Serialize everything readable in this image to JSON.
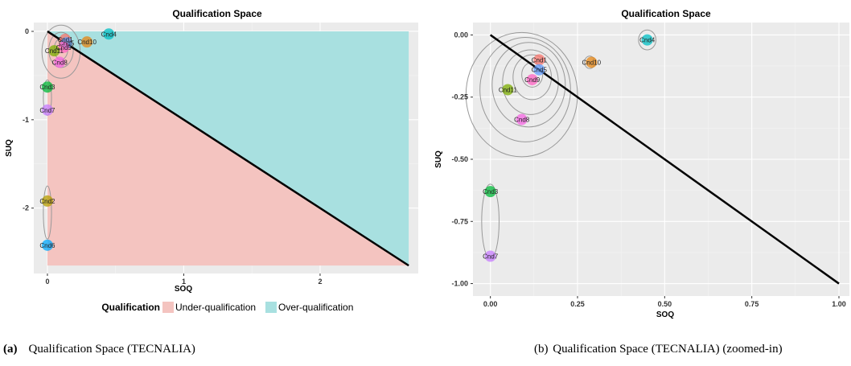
{
  "figure": {
    "caption_a": {
      "label": "(a)",
      "text": "Qualification Space (TECNALIA)"
    },
    "caption_b": {
      "label": "(b)",
      "text": "Qualification Space (TECNALIA) (zoomed-in)"
    }
  },
  "legend": {
    "title": "Qualification",
    "items": [
      {
        "label": "Under-qualification",
        "color": "#F4C4C0"
      },
      {
        "label": "Over-qualification",
        "color": "#A8E0E0"
      }
    ]
  },
  "colors": {
    "panel_bg": "#EBEBEB",
    "grid": "#FFFFFF",
    "diagonal": "#000000",
    "contour": "#999999",
    "under_region": "#F4C4C0",
    "over_region": "#A8E0E0"
  },
  "chart_data": [
    {
      "type": "scatter",
      "title": "Qualification Space",
      "xlabel": "SOQ",
      "ylabel": "SUQ",
      "xlim": [
        -0.1,
        2.72
      ],
      "ylim": [
        -2.74,
        0.1
      ],
      "xticks": [
        0,
        1,
        2
      ],
      "yticks": [
        0,
        -1,
        -2
      ],
      "xtick_labels": [
        "0",
        "1",
        "2"
      ],
      "ytick_labels": [
        "0",
        "-1",
        "-2"
      ],
      "grid": true,
      "legend_position": "bottom",
      "regions": [
        {
          "name": "Under-qualification",
          "color": "#F4C4C0",
          "polygon": [
            [
              0,
              0
            ],
            [
              2.65,
              -2.65
            ],
            [
              0,
              -2.65
            ]
          ]
        },
        {
          "name": "Over-qualification",
          "color": "#A8E0E0",
          "polygon": [
            [
              0,
              0
            ],
            [
              2.65,
              0
            ],
            [
              2.65,
              -2.65
            ]
          ]
        }
      ],
      "diagonal": [
        [
          0,
          0
        ],
        [
          2.65,
          -2.65
        ]
      ],
      "points": [
        {
          "label": "Cnd1",
          "x": 0.13,
          "y": -0.09,
          "color": "#F8766D"
        },
        {
          "label": "Cnd2",
          "x": 0.0,
          "y": -1.92,
          "color": "#B79F00"
        },
        {
          "label": "Cnd3",
          "x": 0.0,
          "y": -0.63,
          "color": "#00BA38"
        },
        {
          "label": "Cnd4",
          "x": 0.45,
          "y": -0.03,
          "color": "#00BFC4"
        },
        {
          "label": "Cnd5",
          "x": 0.14,
          "y": -0.13,
          "color": "#619CFF"
        },
        {
          "label": "Cnd6",
          "x": 0.0,
          "y": -2.42,
          "color": "#00A9FF"
        },
        {
          "label": "Cnd7",
          "x": 0.0,
          "y": -0.89,
          "color": "#C77CFF"
        },
        {
          "label": "Cnd8",
          "x": 0.09,
          "y": -0.35,
          "color": "#F564E3"
        },
        {
          "label": "Cnd9",
          "x": 0.12,
          "y": -0.18,
          "color": "#FF61C3"
        },
        {
          "label": "Cnd10",
          "x": 0.29,
          "y": -0.12,
          "color": "#E68613"
        },
        {
          "label": "Cnd11",
          "x": 0.05,
          "y": -0.22,
          "color": "#7CAE00"
        }
      ],
      "contours": [
        {
          "cx": 0.1,
          "cy": -0.2,
          "rx": 0.05,
          "ry": 0.12
        },
        {
          "cx": 0.1,
          "cy": -0.21,
          "rx": 0.09,
          "ry": 0.2
        },
        {
          "cx": 0.1,
          "cy": -0.23,
          "rx": 0.14,
          "ry": 0.3
        },
        {
          "cx": 0.0,
          "cy": -0.75,
          "rx": 0.03,
          "ry": 0.2
        },
        {
          "cx": 0.0,
          "cy": -2.05,
          "rx": 0.03,
          "ry": 0.3
        }
      ]
    },
    {
      "type": "scatter",
      "title": "Qualification Space",
      "xlabel": "SOQ",
      "ylabel": "SUQ",
      "xlim": [
        -0.05,
        1.03
      ],
      "ylim": [
        -1.05,
        0.05
      ],
      "xticks": [
        0,
        0.25,
        0.5,
        0.75,
        1.0
      ],
      "yticks": [
        0,
        -0.25,
        -0.5,
        -0.75,
        -1.0
      ],
      "xtick_labels": [
        "0.00",
        "0.25",
        "0.50",
        "0.75",
        "1.00"
      ],
      "ytick_labels": [
        "0.00",
        "-0.25",
        "-0.50",
        "-0.75",
        "-1.00"
      ],
      "grid": true,
      "diagonal": [
        [
          0,
          0
        ],
        [
          1.0,
          -1.0
        ]
      ],
      "points": [
        {
          "label": "Cnd1",
          "x": 0.14,
          "y": -0.1,
          "color": "#F8766D"
        },
        {
          "label": "Cnd3",
          "x": 0.0,
          "y": -0.63,
          "color": "#00BA38"
        },
        {
          "label": "Cnd4",
          "x": 0.45,
          "y": -0.02,
          "color": "#00BFC4"
        },
        {
          "label": "Cnd5",
          "x": 0.14,
          "y": -0.14,
          "color": "#619CFF"
        },
        {
          "label": "Cnd7",
          "x": 0.0,
          "y": -0.89,
          "color": "#C77CFF"
        },
        {
          "label": "Cnd8",
          "x": 0.09,
          "y": -0.34,
          "color": "#F564E3"
        },
        {
          "label": "Cnd9",
          "x": 0.12,
          "y": -0.18,
          "color": "#FF61C3"
        },
        {
          "label": "Cnd10",
          "x": 0.29,
          "y": -0.11,
          "color": "#E68613"
        },
        {
          "label": "Cnd11",
          "x": 0.05,
          "y": -0.22,
          "color": "#7CAE00"
        }
      ],
      "contours": [
        {
          "cx": 0.12,
          "cy": -0.16,
          "rx": 0.03,
          "ry": 0.05
        },
        {
          "cx": 0.12,
          "cy": -0.17,
          "rx": 0.055,
          "ry": 0.09
        },
        {
          "cx": 0.115,
          "cy": -0.19,
          "rx": 0.08,
          "ry": 0.13
        },
        {
          "cx": 0.11,
          "cy": -0.2,
          "rx": 0.105,
          "ry": 0.17
        },
        {
          "cx": 0.1,
          "cy": -0.22,
          "rx": 0.13,
          "ry": 0.21
        },
        {
          "cx": 0.09,
          "cy": -0.24,
          "rx": 0.16,
          "ry": 0.25
        },
        {
          "cx": 0.285,
          "cy": -0.11,
          "rx": 0.015,
          "ry": 0.025
        },
        {
          "cx": 0.45,
          "cy": -0.02,
          "rx": 0.025,
          "ry": 0.04
        },
        {
          "cx": 0.0,
          "cy": -0.75,
          "rx": 0.025,
          "ry": 0.15
        }
      ]
    }
  ]
}
